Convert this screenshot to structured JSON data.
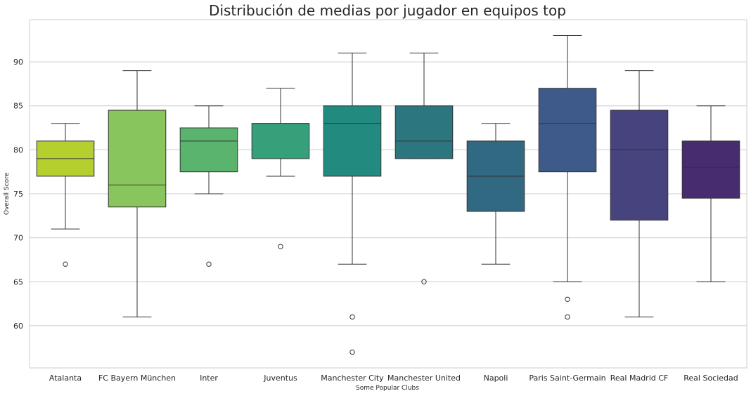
{
  "chart_data": {
    "type": "box",
    "title": "Distribución de medias por jugador en equipos top",
    "xlabel": "Some Popular Clubs",
    "ylabel": "Overall Score",
    "ylim": [
      55.2,
      94.8
    ],
    "yticks": [
      60,
      65,
      70,
      75,
      80,
      85,
      90
    ],
    "grid": true,
    "categories": [
      "Atalanta",
      "FC Bayern München",
      "Inter",
      "Juventus",
      "Manchester City",
      "Manchester United",
      "Napoli",
      "Paris Saint-Germain",
      "Real Madrid CF",
      "Real Sociedad"
    ],
    "colors": [
      "#b5cf2e",
      "#89c55d",
      "#5ab46d",
      "#36a07a",
      "#238a7f",
      "#2c777f",
      "#306981",
      "#3e5a8a",
      "#46437f",
      "#482c70"
    ],
    "boxes": [
      {
        "whisker_low": 71,
        "q1": 77,
        "median": 79,
        "q3": 81,
        "whisker_high": 83,
        "outliers": [
          67
        ]
      },
      {
        "whisker_low": 61,
        "q1": 73.5,
        "median": 76,
        "q3": 84.5,
        "whisker_high": 89,
        "outliers": []
      },
      {
        "whisker_low": 75,
        "q1": 77.5,
        "median": 81,
        "q3": 82.5,
        "whisker_high": 85,
        "outliers": [
          67
        ]
      },
      {
        "whisker_low": 77,
        "q1": 79,
        "median": 83,
        "q3": 83,
        "whisker_high": 87,
        "outliers": [
          69
        ]
      },
      {
        "whisker_low": 67,
        "q1": 77,
        "median": 83,
        "q3": 85,
        "whisker_high": 91,
        "outliers": [
          61,
          57
        ]
      },
      {
        "whisker_low": 79,
        "q1": 79,
        "median": 81,
        "q3": 85,
        "whisker_high": 91,
        "outliers": [
          65
        ]
      },
      {
        "whisker_low": 67,
        "q1": 73,
        "median": 77,
        "q3": 81,
        "whisker_high": 83,
        "outliers": []
      },
      {
        "whisker_low": 65,
        "q1": 77.5,
        "median": 83,
        "q3": 87,
        "whisker_high": 93,
        "outliers": [
          63,
          61
        ]
      },
      {
        "whisker_low": 61,
        "q1": 72,
        "median": 80,
        "q3": 84.5,
        "whisker_high": 89,
        "outliers": []
      },
      {
        "whisker_low": 65,
        "q1": 74.5,
        "median": 78,
        "q3": 81,
        "whisker_high": 85,
        "outliers": []
      }
    ]
  }
}
